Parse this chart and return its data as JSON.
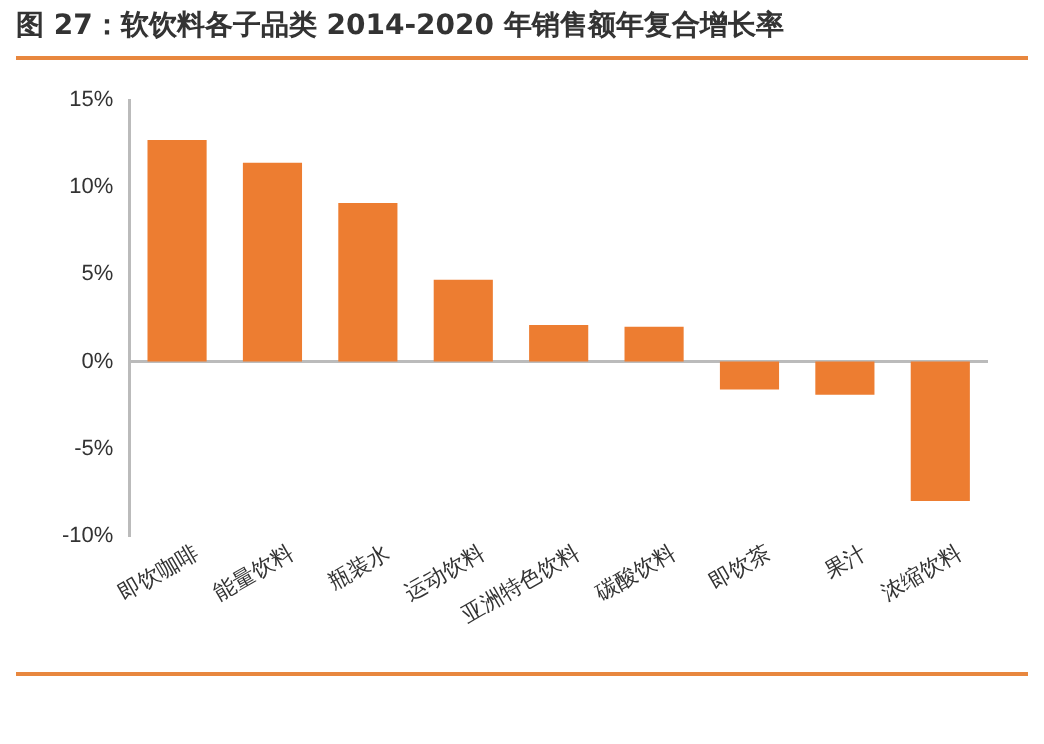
{
  "chart_data": {
    "type": "bar",
    "title": "图 27：软饮料各子品类 2014-2020 年销售额年复合增长率",
    "categories": [
      "即饮咖啡",
      "能量饮料",
      "瓶装水",
      "运动饮料",
      "亚洲特色饮料",
      "碳酸饮料",
      "即饮茶",
      "果汁",
      "浓缩饮料"
    ],
    "values": [
      12.7,
      11.4,
      9.1,
      4.7,
      2.1,
      2.0,
      -1.6,
      -1.9,
      -8.0
    ],
    "color": "#ed7d31",
    "ylim": [
      -10,
      15
    ],
    "yticks": [
      {
        "value": -10,
        "label": "-10%"
      },
      {
        "value": -5,
        "label": "-5%"
      },
      {
        "value": 0,
        "label": "0%"
      },
      {
        "value": 5,
        "label": "5%"
      },
      {
        "value": 10,
        "label": "10%"
      },
      {
        "value": 15,
        "label": "15%"
      }
    ],
    "ref_lines": [
      {
        "axis": "y",
        "value": 0,
        "color": "#bbbbbb"
      }
    ],
    "grid": false,
    "legend": false
  }
}
